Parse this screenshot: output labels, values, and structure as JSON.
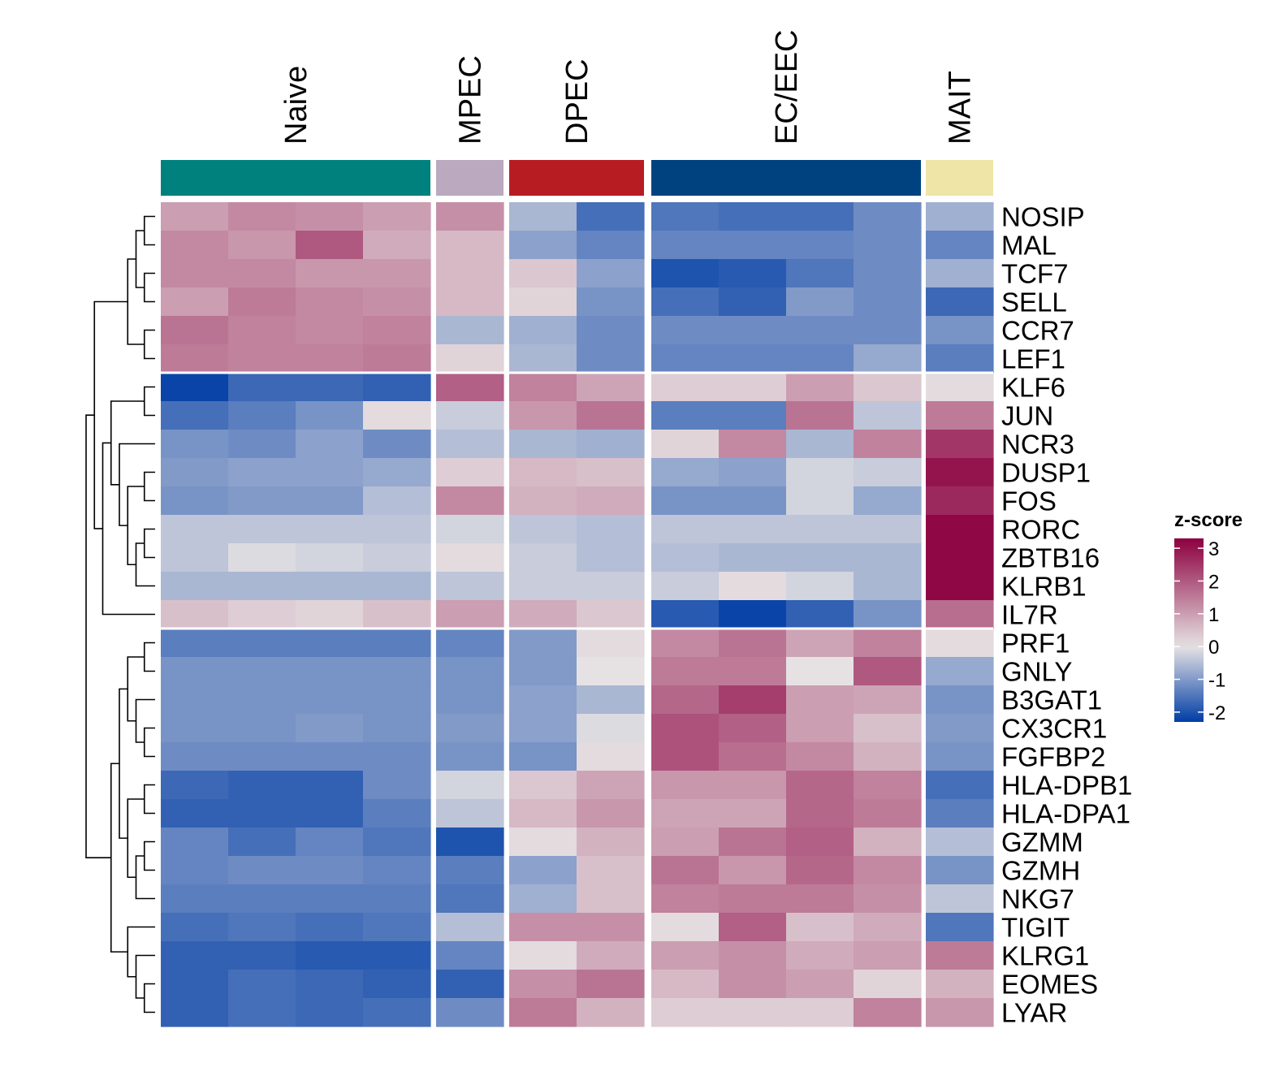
{
  "chart_data": {
    "type": "heatmap",
    "title": "",
    "groups": [
      {
        "name": "Naive",
        "color": "#00817D",
        "n_columns": 4
      },
      {
        "name": "MPEC",
        "color": "#BBA9C0",
        "n_columns": 1
      },
      {
        "name": "DPEC",
        "color": "#B71C23",
        "n_columns": 2
      },
      {
        "name": "EC/EEC",
        "color": "#00427F",
        "n_columns": 4
      },
      {
        "name": "MAIT",
        "color": "#EEE5A7",
        "n_columns": 1
      }
    ],
    "rows": [
      "NOSIP",
      "MAL",
      "TCF7",
      "SELL",
      "CCR7",
      "LEF1",
      "KLF6",
      "JUN",
      "NCR3",
      "DUSP1",
      "FOS",
      "RORC",
      "ZBTB16",
      "KLRB1",
      "IL7R",
      "PRF1",
      "GNLY",
      "B3GAT1",
      "CX3CR1",
      "FGFBP2",
      "HLA-DPB1",
      "HLA-DPA1",
      "GZMM",
      "GZMH",
      "NKG7",
      "TIGIT",
      "KLRG1",
      "EOMES",
      "LYAR"
    ],
    "row_groups_break_after": [
      5,
      14
    ],
    "values": [
      [
        1.0,
        1.3,
        1.2,
        1.0,
        1.2,
        -0.6,
        -1.6,
        -1.5,
        -1.6,
        -1.6,
        -1.2,
        -0.7
      ],
      [
        1.3,
        1.1,
        2.0,
        0.8,
        0.6,
        -0.9,
        -1.3,
        -1.3,
        -1.3,
        -1.3,
        -1.2,
        -1.3
      ],
      [
        1.3,
        1.3,
        1.1,
        1.1,
        0.6,
        0.4,
        -0.9,
        -2.0,
        -1.9,
        -1.5,
        -1.2,
        -0.7
      ],
      [
        1.0,
        1.5,
        1.3,
        1.2,
        0.6,
        0.2,
        -1.1,
        -1.6,
        -1.8,
        -1.0,
        -1.2,
        -1.7
      ],
      [
        1.6,
        1.4,
        1.3,
        1.4,
        -0.6,
        -0.7,
        -1.2,
        -1.2,
        -1.2,
        -1.2,
        -1.2,
        -1.1
      ],
      [
        1.5,
        1.4,
        1.4,
        1.5,
        0.2,
        -0.6,
        -1.2,
        -1.3,
        -1.3,
        -1.3,
        -0.8,
        -1.4
      ],
      [
        -2.2,
        -1.7,
        -1.7,
        -1.8,
        1.9,
        1.4,
        0.9,
        0.3,
        0.3,
        1.0,
        0.4,
        0.1
      ],
      [
        -1.6,
        -1.4,
        -1.1,
        0.1,
        -0.3,
        1.1,
        1.6,
        -1.4,
        -1.4,
        1.6,
        -0.4,
        1.5
      ],
      [
        -1.1,
        -1.2,
        -0.9,
        -1.2,
        -0.5,
        -0.6,
        -0.7,
        0.2,
        1.3,
        -0.6,
        1.4,
        2.5
      ],
      [
        -1.0,
        -0.9,
        -0.9,
        -0.8,
        0.3,
        0.6,
        0.5,
        -0.8,
        -0.9,
        -0.2,
        -0.3,
        3.0
      ],
      [
        -1.1,
        -1.0,
        -1.0,
        -0.5,
        1.3,
        0.7,
        0.8,
        -1.1,
        -1.1,
        -0.2,
        -0.8,
        2.7
      ],
      [
        -0.4,
        -0.4,
        -0.4,
        -0.4,
        -0.2,
        -0.4,
        -0.5,
        -0.4,
        -0.4,
        -0.4,
        -0.4,
        3.2
      ],
      [
        -0.4,
        -0.1,
        -0.2,
        -0.3,
        0.1,
        -0.3,
        -0.5,
        -0.5,
        -0.6,
        -0.6,
        -0.6,
        3.2
      ],
      [
        -0.6,
        -0.6,
        -0.6,
        -0.6,
        -0.4,
        -0.3,
        -0.3,
        -0.3,
        0.1,
        -0.2,
        -0.6,
        3.2
      ],
      [
        0.5,
        0.3,
        0.2,
        0.5,
        1.0,
        0.8,
        0.4,
        -1.9,
        -2.2,
        -1.8,
        -1.1,
        1.7
      ],
      [
        -1.4,
        -1.4,
        -1.4,
        -1.4,
        -1.3,
        -1.0,
        0.1,
        1.3,
        1.6,
        0.9,
        1.4,
        0.1
      ],
      [
        -1.1,
        -1.1,
        -1.1,
        -1.1,
        -1.1,
        -1.0,
        0.0,
        1.5,
        1.5,
        0.0,
        2.0,
        -0.8
      ],
      [
        -1.1,
        -1.1,
        -1.1,
        -1.1,
        -1.1,
        -0.9,
        -0.6,
        1.8,
        2.4,
        1.0,
        0.9,
        -1.1
      ],
      [
        -1.1,
        -1.1,
        -1.0,
        -1.1,
        -1.0,
        -0.9,
        -0.1,
        2.1,
        1.9,
        1.0,
        0.5,
        -1.0
      ],
      [
        -1.2,
        -1.2,
        -1.2,
        -1.2,
        -1.1,
        -1.1,
        0.1,
        2.1,
        1.7,
        1.3,
        0.7,
        -1.1
      ],
      [
        -1.7,
        -1.8,
        -1.8,
        -1.2,
        -0.2,
        0.4,
        0.9,
        1.1,
        1.1,
        1.8,
        1.4,
        -1.6
      ],
      [
        -1.8,
        -1.8,
        -1.8,
        -1.4,
        -0.4,
        0.6,
        1.1,
        0.9,
        0.9,
        1.8,
        1.5,
        -1.4
      ],
      [
        -1.3,
        -1.6,
        -1.3,
        -1.5,
        -2.0,
        0.1,
        0.7,
        1.0,
        1.6,
        1.9,
        0.7,
        -0.5
      ],
      [
        -1.3,
        -1.2,
        -1.2,
        -1.3,
        -1.4,
        -0.9,
        0.5,
        1.6,
        1.1,
        1.8,
        1.3,
        -1.1
      ],
      [
        -1.4,
        -1.4,
        -1.4,
        -1.4,
        -1.5,
        -0.7,
        0.5,
        1.4,
        1.5,
        1.5,
        1.2,
        -0.4
      ],
      [
        -1.6,
        -1.5,
        -1.6,
        -1.5,
        -0.5,
        1.2,
        1.2,
        0.1,
        1.9,
        0.5,
        0.8,
        -1.5
      ],
      [
        -1.8,
        -1.8,
        -1.9,
        -1.9,
        -1.3,
        0.1,
        0.8,
        1.0,
        1.2,
        0.8,
        1.0,
        1.5
      ],
      [
        -1.8,
        -1.6,
        -1.7,
        -1.8,
        -1.8,
        1.2,
        1.6,
        0.6,
        1.2,
        1.0,
        0.2,
        0.7
      ],
      [
        -1.8,
        -1.6,
        -1.7,
        -1.6,
        -1.2,
        1.5,
        0.7,
        0.3,
        0.3,
        0.3,
        1.4,
        1.1
      ]
    ],
    "colorscale": {
      "title": "z-score",
      "ticks": [
        "3",
        "2",
        "1",
        "0",
        "-1",
        "-2"
      ],
      "tick_values": [
        3,
        2,
        1,
        0,
        -1,
        -2
      ],
      "range": [
        -2.3,
        3.3
      ],
      "stops": [
        {
          "value": -2.3,
          "color": "#003DA6"
        },
        {
          "value": 0,
          "color": "#E6E2E3"
        },
        {
          "value": 3.3,
          "color": "#8C003F"
        }
      ]
    },
    "dendrogram": {
      "leaves": 29,
      "tree": [
        [
          [
            [
              [
                0,
                1
              ],
              [
                2,
                3
              ]
            ],
            [
              4,
              5
            ]
          ],
          [
            [
              [
                6,
                7
              ],
              [
                8,
                [
                  [
                    9,
                    10
                  ],
                  [
                    [
                      11,
                      12
                    ],
                    13
                  ]
                ]
              ]
            ],
            14
          ]
        ],
        [
          [
            [
              [
                15,
                16
              ],
              [
                17,
                [
                  18,
                  19
                ]
              ]
            ],
            [
              [
                20,
                21
              ],
              [
                [
                  22,
                  23
                ],
                24
              ]
            ]
          ],
          [
            25,
            [
              26,
              [
                27,
                28
              ]
            ]
          ]
        ]
      ]
    }
  }
}
